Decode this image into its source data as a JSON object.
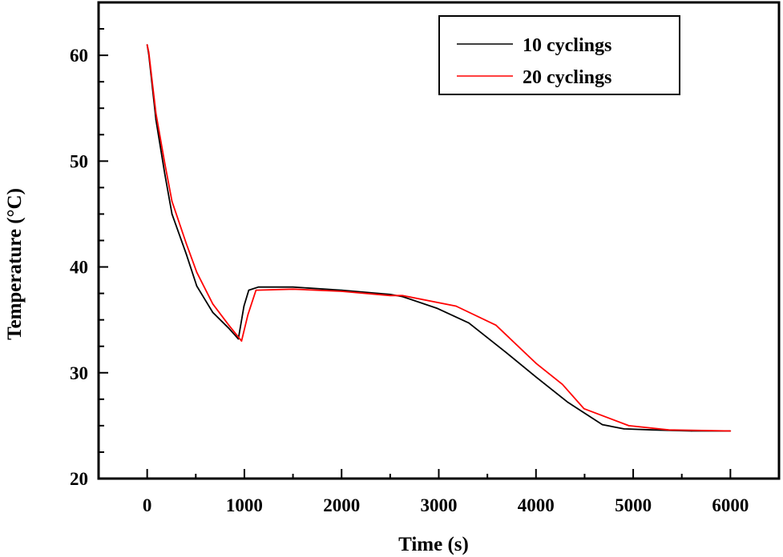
{
  "chart_data": {
    "type": "line",
    "title": "",
    "xlabel": "Time (s)",
    "ylabel": "Temperature (°C)",
    "xlim": [
      -500,
      6500
    ],
    "ylim": [
      20,
      65
    ],
    "xticks": [
      0,
      1000,
      2000,
      3000,
      4000,
      5000,
      6000
    ],
    "yticks": [
      20,
      30,
      40,
      50,
      60
    ],
    "grid": false,
    "legend_position": "top-right",
    "series": [
      {
        "name": "10 cyclings",
        "color": "#000000",
        "x": [
          0,
          16,
          90,
          181,
          255,
          403,
          510,
          675,
          840,
          938,
          996,
          1045,
          1144,
          1500,
          2000,
          2500,
          2626,
          2979,
          3309,
          3695,
          4000,
          4329,
          4683,
          4905,
          5200,
          5600,
          6000
        ],
        "y": [
          61.0,
          60.1,
          53.9,
          48.8,
          45.0,
          41.2,
          38.2,
          35.7,
          34.2,
          33.2,
          36.3,
          37.8,
          38.1,
          38.1,
          37.8,
          37.4,
          37.2,
          36.1,
          34.7,
          31.9,
          29.6,
          27.2,
          25.1,
          24.7,
          24.6,
          24.5,
          24.5
        ]
      },
      {
        "name": "20 cyclings",
        "color": "#ff0000",
        "x": [
          0,
          16,
          90,
          181,
          255,
          403,
          510,
          675,
          840,
          971,
          1037,
          1119,
          1500,
          2000,
          2500,
          2626,
          3177,
          3588,
          4000,
          4272,
          4494,
          4955,
          5366,
          6000
        ],
        "y": [
          61.0,
          60.3,
          54.5,
          49.8,
          46.2,
          42.2,
          39.5,
          36.5,
          34.5,
          33.0,
          35.5,
          37.8,
          37.9,
          37.7,
          37.3,
          37.3,
          36.3,
          34.5,
          30.9,
          28.9,
          26.6,
          25.0,
          24.6,
          24.5
        ]
      }
    ]
  }
}
